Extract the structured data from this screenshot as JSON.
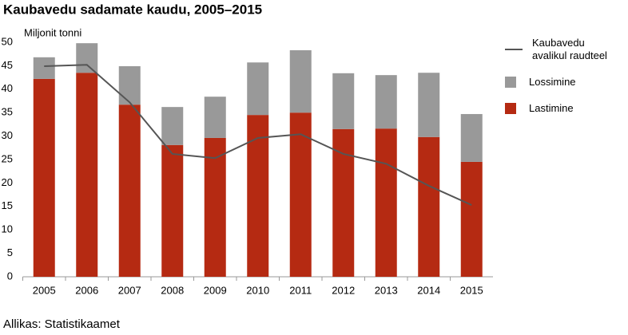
{
  "chart_data": {
    "type": "bar",
    "title": "Kaubavedu sadamate kaudu, 2005–2015",
    "y_label": "Miljonit tonni",
    "source": "Allikas: Statistikaamet",
    "categories": [
      "2005",
      "2006",
      "2007",
      "2008",
      "2009",
      "2010",
      "2011",
      "2012",
      "2013",
      "2014",
      "2015"
    ],
    "series": [
      {
        "name": "Lastimine",
        "color": "#b52a12",
        "values": [
          42.2,
          43.5,
          36.7,
          28.1,
          29.6,
          34.5,
          35.0,
          31.5,
          31.6,
          29.8,
          24.5
        ]
      },
      {
        "name": "Lossimine",
        "color": "#999999",
        "values": [
          4.6,
          6.3,
          8.2,
          8.1,
          8.8,
          11.2,
          13.3,
          11.9,
          11.4,
          13.7,
          10.2
        ]
      },
      {
        "name": "Kaubavedu avalikul raudteel",
        "color": "#555555",
        "type": "line",
        "values": [
          44.9,
          45.2,
          37.2,
          26.2,
          25.3,
          29.6,
          30.4,
          26.2,
          24.1,
          19.4,
          15.3
        ]
      }
    ],
    "ylim": [
      0,
      50
    ],
    "yticks": [
      0,
      5,
      10,
      15,
      20,
      25,
      30,
      35,
      40,
      45,
      50
    ],
    "grid": false
  }
}
